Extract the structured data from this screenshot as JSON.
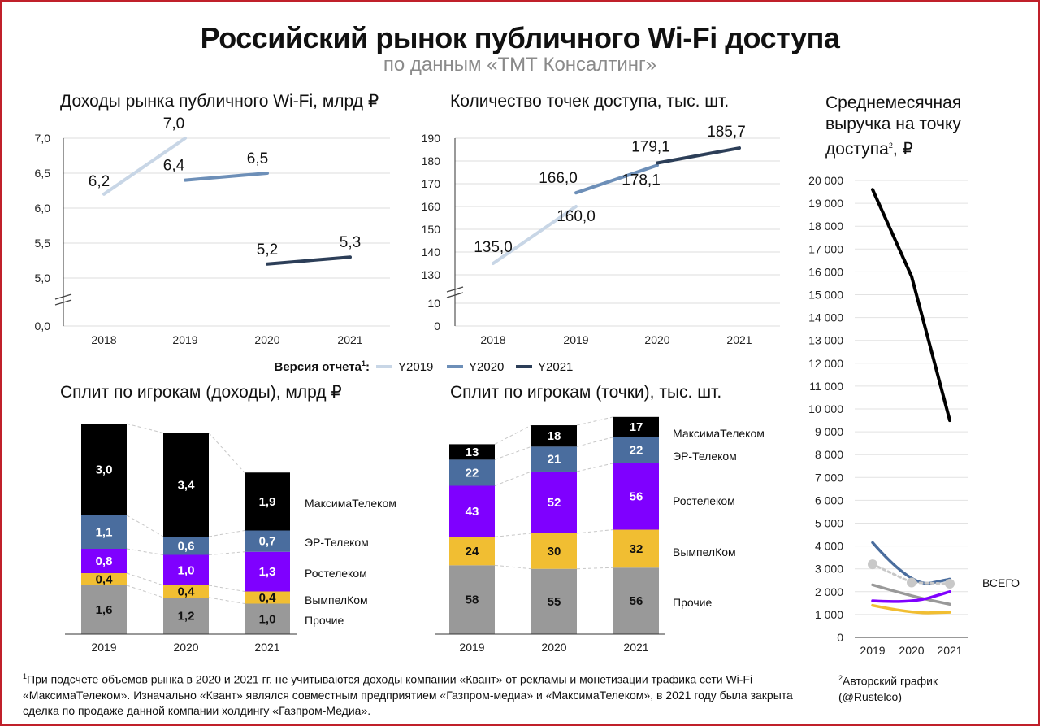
{
  "header": {
    "title": "Российский рынок публичного Wi-Fi доступа",
    "subtitle": "по данным «ТМТ Консалтинг»"
  },
  "colors": {
    "Y2019": "#c8d6e6",
    "Y2020": "#6d8fb8",
    "Y2021": "#2c3e58",
    "MaksimaTelekom": "#000000",
    "ER-Telekom": "#4a6d9e",
    "Rostelecom": "#7f00ff",
    "VimpelKom": "#f1be32",
    "Others": "#999999",
    "total": "#c8c8c8"
  },
  "chart_data": [
    {
      "type": "line",
      "title": "Доходы рынка публичного Wi-Fi, млрд ₽",
      "x": [
        "2018",
        "2019",
        "2020",
        "2021"
      ],
      "yticks": [
        "0,0",
        "5,0",
        "5,5",
        "6,0",
        "6,5",
        "7,0"
      ],
      "ylim": [
        5.0,
        7.0
      ],
      "axis_break": true,
      "series": [
        {
          "name": "Y2019",
          "x": [
            "2018",
            "2019"
          ],
          "values": [
            6.2,
            7.0
          ],
          "labels": [
            "6,2",
            "7,0"
          ]
        },
        {
          "name": "Y2020",
          "x": [
            "2019",
            "2020"
          ],
          "values": [
            6.4,
            6.5
          ],
          "labels": [
            "6,4",
            "6,5"
          ]
        },
        {
          "name": "Y2021",
          "x": [
            "2020",
            "2021"
          ],
          "values": [
            5.2,
            5.3
          ],
          "labels": [
            "5,2",
            "5,3"
          ]
        }
      ]
    },
    {
      "type": "line",
      "title": "Количество точек доступа, тыс. шт.",
      "x": [
        "2018",
        "2019",
        "2020",
        "2021"
      ],
      "yticks": [
        "0",
        "10",
        "130",
        "140",
        "150",
        "160",
        "170",
        "180",
        "190"
      ],
      "ylim": [
        130,
        190
      ],
      "axis_break": true,
      "series": [
        {
          "name": "Y2019",
          "x": [
            "2018",
            "2019"
          ],
          "values": [
            135.0,
            160.0
          ],
          "labels": [
            "135,0",
            "160,0"
          ]
        },
        {
          "name": "Y2020",
          "x": [
            "2019",
            "2020"
          ],
          "values": [
            166.0,
            178.1
          ],
          "labels": [
            "166,0",
            "178,1"
          ]
        },
        {
          "name": "Y2021",
          "x": [
            "2020",
            "2021"
          ],
          "values": [
            179.1,
            185.7
          ],
          "labels": [
            "179,1",
            "185,7"
          ]
        }
      ]
    },
    {
      "type": "line",
      "title": "Среднемесячная выручка на точку доступа",
      "title_sup": "2",
      "title_tail": ", ₽",
      "x": [
        "2019",
        "2020",
        "2021"
      ],
      "yticks": [
        "0",
        "1 000",
        "2 000",
        "3 000",
        "4 000",
        "5 000",
        "6 000",
        "7 000",
        "8 000",
        "9 000",
        "10 000",
        "11 000",
        "12 000",
        "13 000",
        "14 000",
        "15 000",
        "16 000",
        "17 000",
        "18 000",
        "19 000",
        "20 000"
      ],
      "ylim": [
        0,
        20000
      ],
      "series": [
        {
          "name": "МаксимаТелеком",
          "values": [
            19600,
            15800,
            9500
          ]
        },
        {
          "name": "ЭР-Телеком",
          "values": [
            4150,
            2200,
            2550
          ]
        },
        {
          "name": "ВСЕГО",
          "values": [
            3200,
            2400,
            2350
          ],
          "label": "ВСЕГО"
        },
        {
          "name": "Прочие",
          "values": [
            2300,
            1800,
            1450
          ]
        },
        {
          "name": "Ростелеком",
          "values": [
            1600,
            1500,
            2000
          ]
        },
        {
          "name": "ВымпелКом",
          "values": [
            1400,
            1050,
            1100
          ]
        }
      ]
    },
    {
      "type": "bar",
      "stacked": true,
      "title": "Сплит по игрокам (доходы), млрд ₽",
      "categories": [
        "2019",
        "2020",
        "2021"
      ],
      "series": [
        {
          "name": "Прочие",
          "values": [
            1.6,
            1.2,
            1.0
          ],
          "labels": [
            "1,6",
            "1,2",
            "1,0"
          ]
        },
        {
          "name": "ВымпелКом",
          "values": [
            0.4,
            0.4,
            0.4
          ],
          "labels": [
            "0,4",
            "0,4",
            "0,4"
          ]
        },
        {
          "name": "Ростелеком",
          "values": [
            0.8,
            1.0,
            1.3
          ],
          "labels": [
            "0,8",
            "1,0",
            "1,3"
          ]
        },
        {
          "name": "ЭР-Телеком",
          "values": [
            1.1,
            0.6,
            0.7
          ],
          "labels": [
            "1,1",
            "0,6",
            "0,7"
          ]
        },
        {
          "name": "МаксимаТелеком",
          "values": [
            3.0,
            3.4,
            1.9
          ],
          "labels": [
            "3,0",
            "3,4",
            "1,9"
          ]
        }
      ]
    },
    {
      "type": "bar",
      "stacked": true,
      "title": "Сплит по игрокам (точки), тыс. шт.",
      "categories": [
        "2019",
        "2020",
        "2021"
      ],
      "series": [
        {
          "name": "Прочие",
          "values": [
            58,
            55,
            56
          ],
          "labels": [
            "58",
            "55",
            "56"
          ]
        },
        {
          "name": "ВымпелКом",
          "values": [
            24,
            30,
            32
          ],
          "labels": [
            "24",
            "30",
            "32"
          ]
        },
        {
          "name": "Ростелеком",
          "values": [
            43,
            52,
            56
          ],
          "labels": [
            "43",
            "52",
            "56"
          ]
        },
        {
          "name": "ЭР-Телеком",
          "values": [
            22,
            21,
            22
          ],
          "labels": [
            "22",
            "21",
            "22"
          ]
        },
        {
          "name": "МаксимаТелеком",
          "values": [
            13,
            18,
            17
          ],
          "labels": [
            "13",
            "18",
            "17"
          ]
        }
      ]
    }
  ],
  "legend": {
    "label": "Версия отчета",
    "label_sup": "1",
    "label_tail": ":",
    "items": [
      "Y2019",
      "Y2020",
      "Y2021"
    ]
  },
  "footnotes": {
    "note1_mark": "1",
    "note1": "При подсчете объемов рынка в 2020 и 2021 гг. не учитываются доходы компании «Квант» от рекламы и монетизации трафика сети Wi-Fi «МаксимаТелеком». Изначально «Квант» являлся совместным предприятием «Газпром-медиа» и «МаксимаТелеком», в 2021 году была закрыта сделка по продаже данной компании холдингу «Газпром-Медиа».",
    "note2_mark": "2",
    "note2": "Авторский график",
    "note2_line2": "(@Rustelco)"
  }
}
